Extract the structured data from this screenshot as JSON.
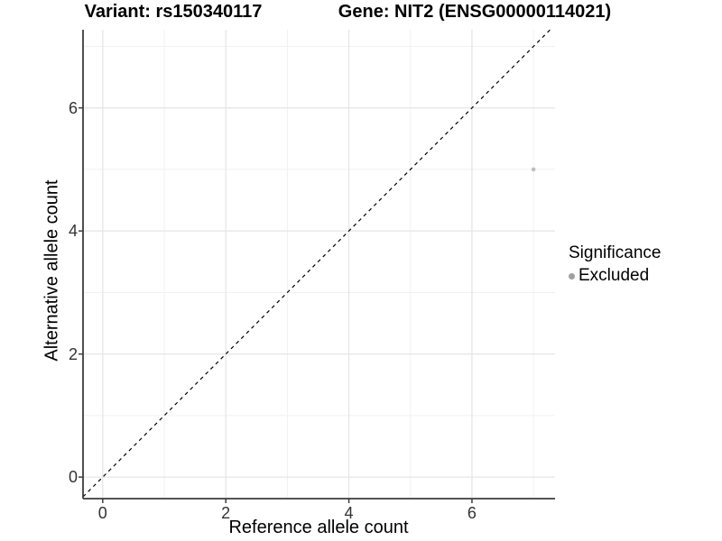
{
  "titles": {
    "variant": "Variant: rs150340117",
    "gene": "Gene: NIT2 (ENSG00000114021)"
  },
  "axes": {
    "x_label": "Reference allele count",
    "y_label": "Alternative allele count"
  },
  "legend": {
    "title": "Significance",
    "items": [
      {
        "label": "Excluded",
        "color": "#a0a0a0"
      }
    ]
  },
  "colors": {
    "background": "#ffffff",
    "grid_major": "#e6e6e6",
    "grid_minor": "#f1f1f1",
    "axis_line": "#3c3c3c",
    "tick_mark": "#3c3c3c",
    "tick_text": "#333333",
    "identity_line": "#000000",
    "point": "#bebebe"
  },
  "chart_data": {
    "type": "scatter",
    "title": "Variant: rs150340117   Gene: NIT2 (ENSG00000114021)",
    "xlabel": "Reference allele count",
    "ylabel": "Alternative allele count",
    "xlim": [
      -0.32,
      7.35
    ],
    "ylim": [
      -0.35,
      7.27
    ],
    "x_ticks": [
      0,
      2,
      4,
      6
    ],
    "y_ticks": [
      0,
      2,
      4,
      6
    ],
    "x_minor": [
      1,
      3,
      5,
      7
    ],
    "y_minor": [
      1,
      3,
      5,
      7
    ],
    "grid": true,
    "legend_position": "right",
    "series": [
      {
        "name": "Excluded",
        "type": "scatter",
        "points": [
          [
            7,
            5
          ]
        ],
        "color": "#bebebe"
      }
    ],
    "reference_line": {
      "kind": "identity",
      "equation": "y = x",
      "style": "dashed",
      "color": "#000000"
    }
  }
}
